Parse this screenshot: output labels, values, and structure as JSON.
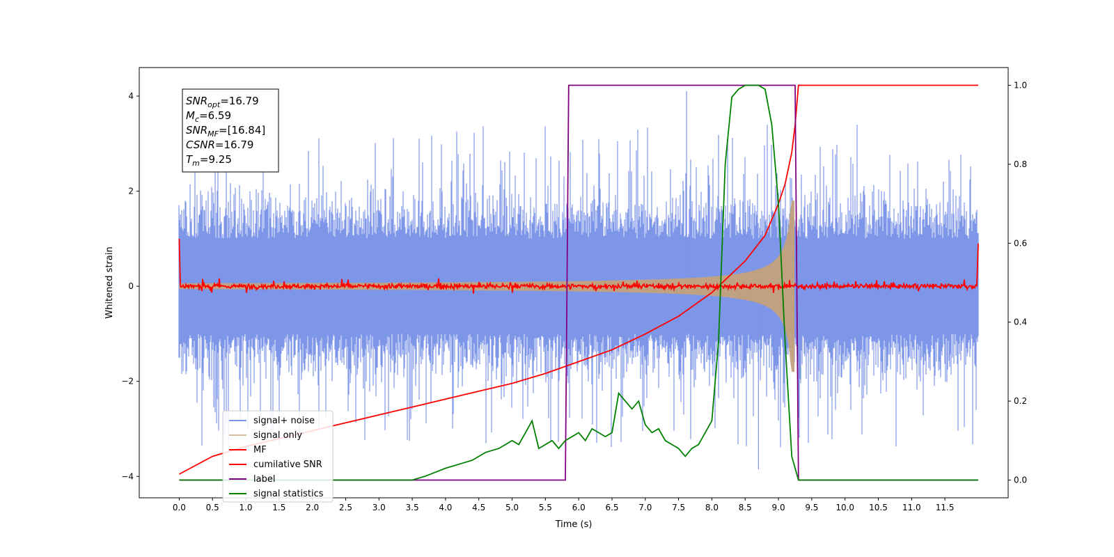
{
  "chart_data": {
    "type": "line",
    "xlabel": "Time (s)",
    "ylabel_left": "Whitened strain",
    "ylabel_right": "",
    "xlim": [
      -0.6,
      12.45
    ],
    "ylim_left": [
      -4.45,
      4.6
    ],
    "ylim_right": [
      -0.045,
      1.045
    ],
    "x_ticks": [
      "0.0",
      "0.5",
      "1.0",
      "1.5",
      "2.0",
      "2.5",
      "3.0",
      "3.5",
      "4.0",
      "4.5",
      "5.0",
      "5.5",
      "6.0",
      "6.5",
      "7.0",
      "7.5",
      "8.0",
      "8.5",
      "9.0",
      "9.5",
      "10.0",
      "10.5",
      "11.0",
      "11.5"
    ],
    "x_tick_values": [
      0,
      0.5,
      1,
      1.5,
      2,
      2.5,
      3,
      3.5,
      4,
      4.5,
      5,
      5.5,
      6,
      6.5,
      7,
      7.5,
      8,
      8.5,
      9,
      9.5,
      10,
      10.5,
      11,
      11.5
    ],
    "y_ticks_left": [
      -4,
      -2,
      0,
      2,
      4
    ],
    "y_ticks_right": [
      0.0,
      0.2,
      0.4,
      0.6,
      0.8,
      1.0
    ],
    "grid": false,
    "legend_placement": "lower-left",
    "annotation_box": {
      "lines": [
        {
          "sym": "SNR",
          "sub": "opt",
          "value": "=16.79"
        },
        {
          "sym": "M",
          "sub": "c",
          "value": "=6.59"
        },
        {
          "sym": "SNR",
          "sub": "MF",
          "value": "=[16.84]"
        },
        {
          "sym": "CSNR",
          "sub": "",
          "value": "=16.79"
        },
        {
          "sym": "T",
          "sub": "m",
          "value": "=9.25"
        }
      ]
    },
    "series": [
      {
        "name": "signal+ noise",
        "axis": "left",
        "color": "#7b94e8",
        "style": "noise-band",
        "x_range": [
          0,
          12
        ],
        "envelope": 2.0,
        "peak_max": 4.1,
        "peak_min": -3.85
      },
      {
        "name": "signal only",
        "axis": "left",
        "color": "#c4a27c",
        "style": "chirp",
        "x_start": 0,
        "x_end": 9.25,
        "amplitude_end": 1.8
      },
      {
        "name": "MF",
        "axis": "left",
        "color": "#ff0000",
        "style": "noise-flat",
        "x_range": [
          0,
          12
        ],
        "edge_value": 1.0,
        "noise": 0.06
      },
      {
        "name": "cumilative SNR",
        "axis": "right",
        "color": "#ff0000",
        "style": "line",
        "x": [
          0.0,
          0.5,
          1.0,
          1.5,
          2.0,
          2.5,
          3.0,
          3.5,
          4.0,
          4.5,
          5.0,
          5.5,
          6.0,
          6.5,
          7.0,
          7.5,
          8.0,
          8.5,
          8.8,
          9.0,
          9.1,
          9.2,
          9.25,
          9.3,
          12.0
        ],
        "y": [
          0.015,
          0.06,
          0.085,
          0.105,
          0.125,
          0.145,
          0.165,
          0.185,
          0.205,
          0.225,
          0.245,
          0.27,
          0.3,
          0.33,
          0.37,
          0.415,
          0.475,
          0.555,
          0.62,
          0.7,
          0.75,
          0.83,
          0.9,
          1.0,
          1.0
        ]
      },
      {
        "name": "label",
        "axis": "right",
        "color": "#800080",
        "style": "line",
        "x": [
          0.0,
          5.8,
          5.85,
          9.25,
          9.3,
          12.0
        ],
        "y": [
          0.0,
          0.0,
          1.0,
          1.0,
          0.0,
          0.0
        ]
      },
      {
        "name": "signal statistics",
        "axis": "right",
        "color": "#008000",
        "style": "line",
        "x": [
          0.0,
          3.5,
          3.7,
          4.0,
          4.2,
          4.4,
          4.5,
          4.6,
          4.8,
          4.9,
          5.0,
          5.1,
          5.2,
          5.3,
          5.4,
          5.5,
          5.6,
          5.7,
          5.8,
          5.9,
          6.0,
          6.1,
          6.2,
          6.3,
          6.4,
          6.5,
          6.6,
          6.7,
          6.8,
          6.9,
          7.0,
          7.1,
          7.2,
          7.3,
          7.4,
          7.5,
          7.6,
          7.7,
          7.8,
          7.9,
          8.0,
          8.1,
          8.2,
          8.3,
          8.4,
          8.5,
          8.6,
          8.7,
          8.8,
          8.9,
          9.0,
          9.1,
          9.2,
          9.3,
          12.0
        ],
        "y": [
          0.0,
          0.0,
          0.01,
          0.03,
          0.04,
          0.05,
          0.06,
          0.07,
          0.08,
          0.09,
          0.1,
          0.09,
          0.12,
          0.15,
          0.08,
          0.09,
          0.1,
          0.08,
          0.1,
          0.11,
          0.12,
          0.1,
          0.13,
          0.12,
          0.11,
          0.12,
          0.22,
          0.2,
          0.18,
          0.2,
          0.14,
          0.12,
          0.13,
          0.1,
          0.09,
          0.08,
          0.06,
          0.08,
          0.09,
          0.12,
          0.15,
          0.35,
          0.8,
          0.97,
          0.99,
          1.0,
          1.0,
          1.0,
          0.99,
          0.9,
          0.7,
          0.35,
          0.06,
          0.0,
          0.0
        ]
      }
    ]
  }
}
